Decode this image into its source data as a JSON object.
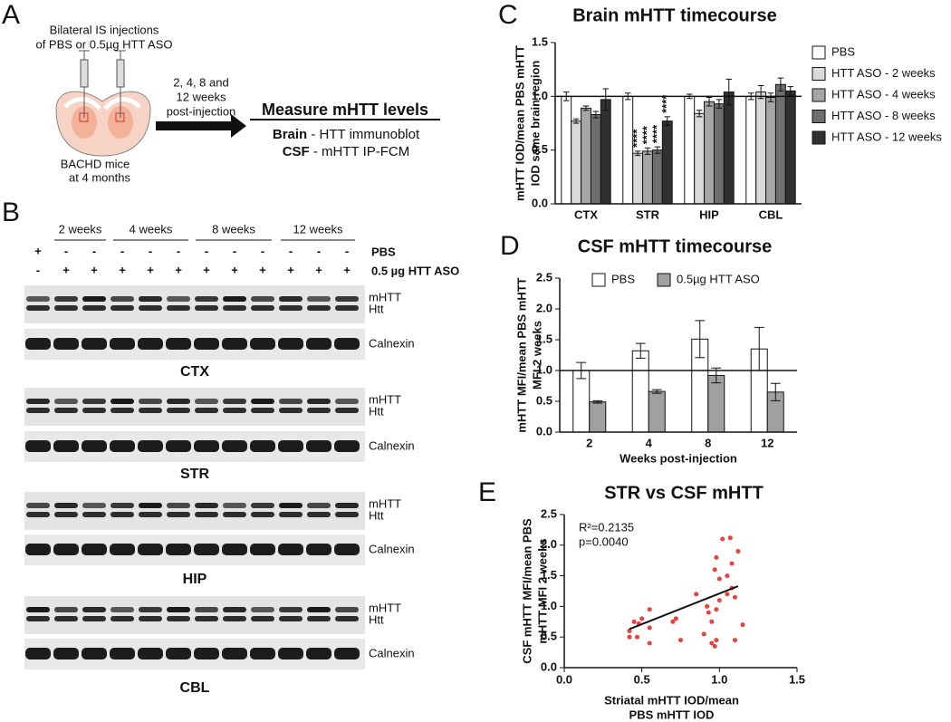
{
  "panel_a": {
    "letter": "A",
    "injection_lines": [
      "Bilateral IS injections",
      "of PBS or 0.5µg HTT ASO"
    ],
    "mice_lines": [
      "BACHD mice",
      "at 4 months"
    ],
    "time_lines": [
      "2, 4, 8 and",
      "12 weeks",
      "post-injection"
    ],
    "heading": "Measure mHTT levels",
    "brain_label": "Brain",
    "brain_text": "- HTT immunoblot",
    "csf_label": "CSF",
    "csf_text": "- mHTT IP-FCM"
  },
  "panel_b": {
    "letter": "B",
    "groups": [
      "2 weeks",
      "4 weeks",
      "8 weeks",
      "12 weeks"
    ],
    "pbs_signs": [
      "+",
      "-",
      "-",
      "-",
      "-",
      "-",
      "-",
      "-",
      "-",
      "-",
      "-",
      "-"
    ],
    "pbs_label": "PBS",
    "aso_signs": [
      "-",
      "+",
      "+",
      "+",
      "+",
      "+",
      "+",
      "+",
      "+",
      "+",
      "+",
      "+"
    ],
    "aso_label": "0.5 µg HTT ASO",
    "mhtt_label": "mHTT",
    "htt_label": "Htt",
    "calnexin_label": "Calnexin",
    "regions": [
      "CTX",
      "STR",
      "HIP",
      "CBL"
    ]
  },
  "chart_data": [
    {
      "type": "bar",
      "panel": "C",
      "title": "Brain mHTT timecourse",
      "ylabel": [
        "mHTT IOD/mean PBS mHTT",
        "IOD same brain region"
      ],
      "categories": [
        "CTX",
        "STR",
        "HIP",
        "CBL"
      ],
      "series": [
        {
          "name": "PBS",
          "color": "#ffffff",
          "values": [
            1.0,
            1.0,
            1.0,
            1.0
          ],
          "errors": [
            0.04,
            0.03,
            0.02,
            0.03
          ]
        },
        {
          "name": "HTT ASO - 2 weeks",
          "color": "#d9d9d9",
          "values": [
            0.77,
            0.47,
            0.84,
            1.04
          ],
          "errors": [
            0.02,
            0.02,
            0.03,
            0.06
          ]
        },
        {
          "name": "HTT ASO - 4 weeks",
          "color": "#a6a6a6",
          "values": [
            0.89,
            0.49,
            0.95,
            0.99
          ],
          "errors": [
            0.02,
            0.03,
            0.04,
            0.04
          ]
        },
        {
          "name": "HTT ASO - 8 weeks",
          "color": "#6e6e6e",
          "values": [
            0.83,
            0.5,
            0.93,
            1.11
          ],
          "errors": [
            0.03,
            0.03,
            0.04,
            0.06
          ]
        },
        {
          "name": "HTT ASO - 12 weeks",
          "color": "#303030",
          "values": [
            0.97,
            0.77,
            1.04,
            1.05
          ],
          "errors": [
            0.1,
            0.04,
            0.12,
            0.04
          ]
        }
      ],
      "annotations": [
        "****",
        "****",
        "****",
        "****",
        "**"
      ],
      "ylim": [
        0,
        1.5
      ],
      "yticks": [
        {
          "value": 0,
          "label": "0.0"
        },
        0.5,
        {
          "value": 1,
          "label": "1.0"
        },
        1.5
      ],
      "reference_line": 1,
      "legend": "right"
    },
    {
      "type": "bar",
      "panel": "D",
      "title": "CSF mHTT timecourse",
      "ylabel": [
        "mHTT MFI/mean PBS mHTT",
        "MFI 2 weeks"
      ],
      "xlabel": "Weeks post-injection",
      "categories": [
        "2",
        "4",
        "8",
        "12"
      ],
      "series": [
        {
          "name": "PBS",
          "color": "#ffffff",
          "values": [
            1.0,
            1.32,
            1.51,
            1.35
          ],
          "errors": [
            0.13,
            0.12,
            0.3,
            0.35
          ]
        },
        {
          "name": "0.5µg HTT ASO",
          "color": "#a0a0a0",
          "values": [
            0.49,
            0.66,
            0.92,
            0.65
          ],
          "errors": [
            0.02,
            0.03,
            0.12,
            0.14
          ]
        }
      ],
      "ylim": [
        0,
        2.5
      ],
      "yticks": [
        {
          "value": 0,
          "label": "0.0"
        },
        0.5,
        {
          "value": 1,
          "label": "1.0"
        },
        1.5,
        {
          "value": 2,
          "label": "2.0"
        },
        2.5
      ],
      "reference_line": 1,
      "legend": "top"
    },
    {
      "type": "scatter",
      "panel": "E",
      "title": "STR vs CSF mHTT",
      "xlabel": [
        "Striatal mHTT IOD/mean",
        "PBS mHTT IOD"
      ],
      "ylabel": [
        "CSF mHTT MFI/mean PBS",
        "mHTT MFI 2 weeks"
      ],
      "color": "#e8413c",
      "x": [
        0.42,
        0.45,
        0.42,
        0.47,
        0.5,
        0.48,
        0.55,
        0.55,
        0.55,
        0.7,
        0.72,
        0.75,
        0.85,
        0.9,
        0.92,
        0.93,
        0.95,
        0.95,
        0.97,
        0.98,
        0.98,
        0.97,
        0.98,
        1.0,
        1.0,
        1.02,
        1.05,
        1.05,
        1.07,
        1.08,
        1.08,
        1.1,
        1.1,
        1.12,
        1.15
      ],
      "values": [
        0.6,
        0.75,
        0.5,
        0.5,
        0.8,
        0.72,
        0.65,
        0.95,
        0.4,
        0.75,
        0.8,
        0.45,
        1.2,
        0.55,
        1.0,
        0.9,
        0.75,
        0.4,
        0.35,
        0.45,
        0.95,
        1.6,
        1.8,
        1.1,
        1.45,
        2.1,
        1.2,
        1.5,
        2.12,
        1.3,
        1.7,
        1.15,
        0.45,
        1.9,
        0.7
      ],
      "fit_line": {
        "x": [
          0.42,
          1.12
        ],
        "values": [
          0.63,
          1.33
        ]
      },
      "annotations": [
        "R²=0.2135",
        "p=0.0040"
      ],
      "xlim": [
        0,
        1.5
      ],
      "xticks": [
        {
          "value": 0,
          "label": "0.0"
        },
        0.5,
        {
          "value": 1,
          "label": "1.0"
        },
        1.5
      ],
      "ylim": [
        0,
        2.5
      ],
      "yticks": [
        {
          "value": 0,
          "label": "0.0"
        },
        0.5,
        {
          "value": 1,
          "label": "1.0"
        },
        1.5,
        {
          "value": 2,
          "label": "2.0"
        },
        2.5
      ]
    }
  ]
}
